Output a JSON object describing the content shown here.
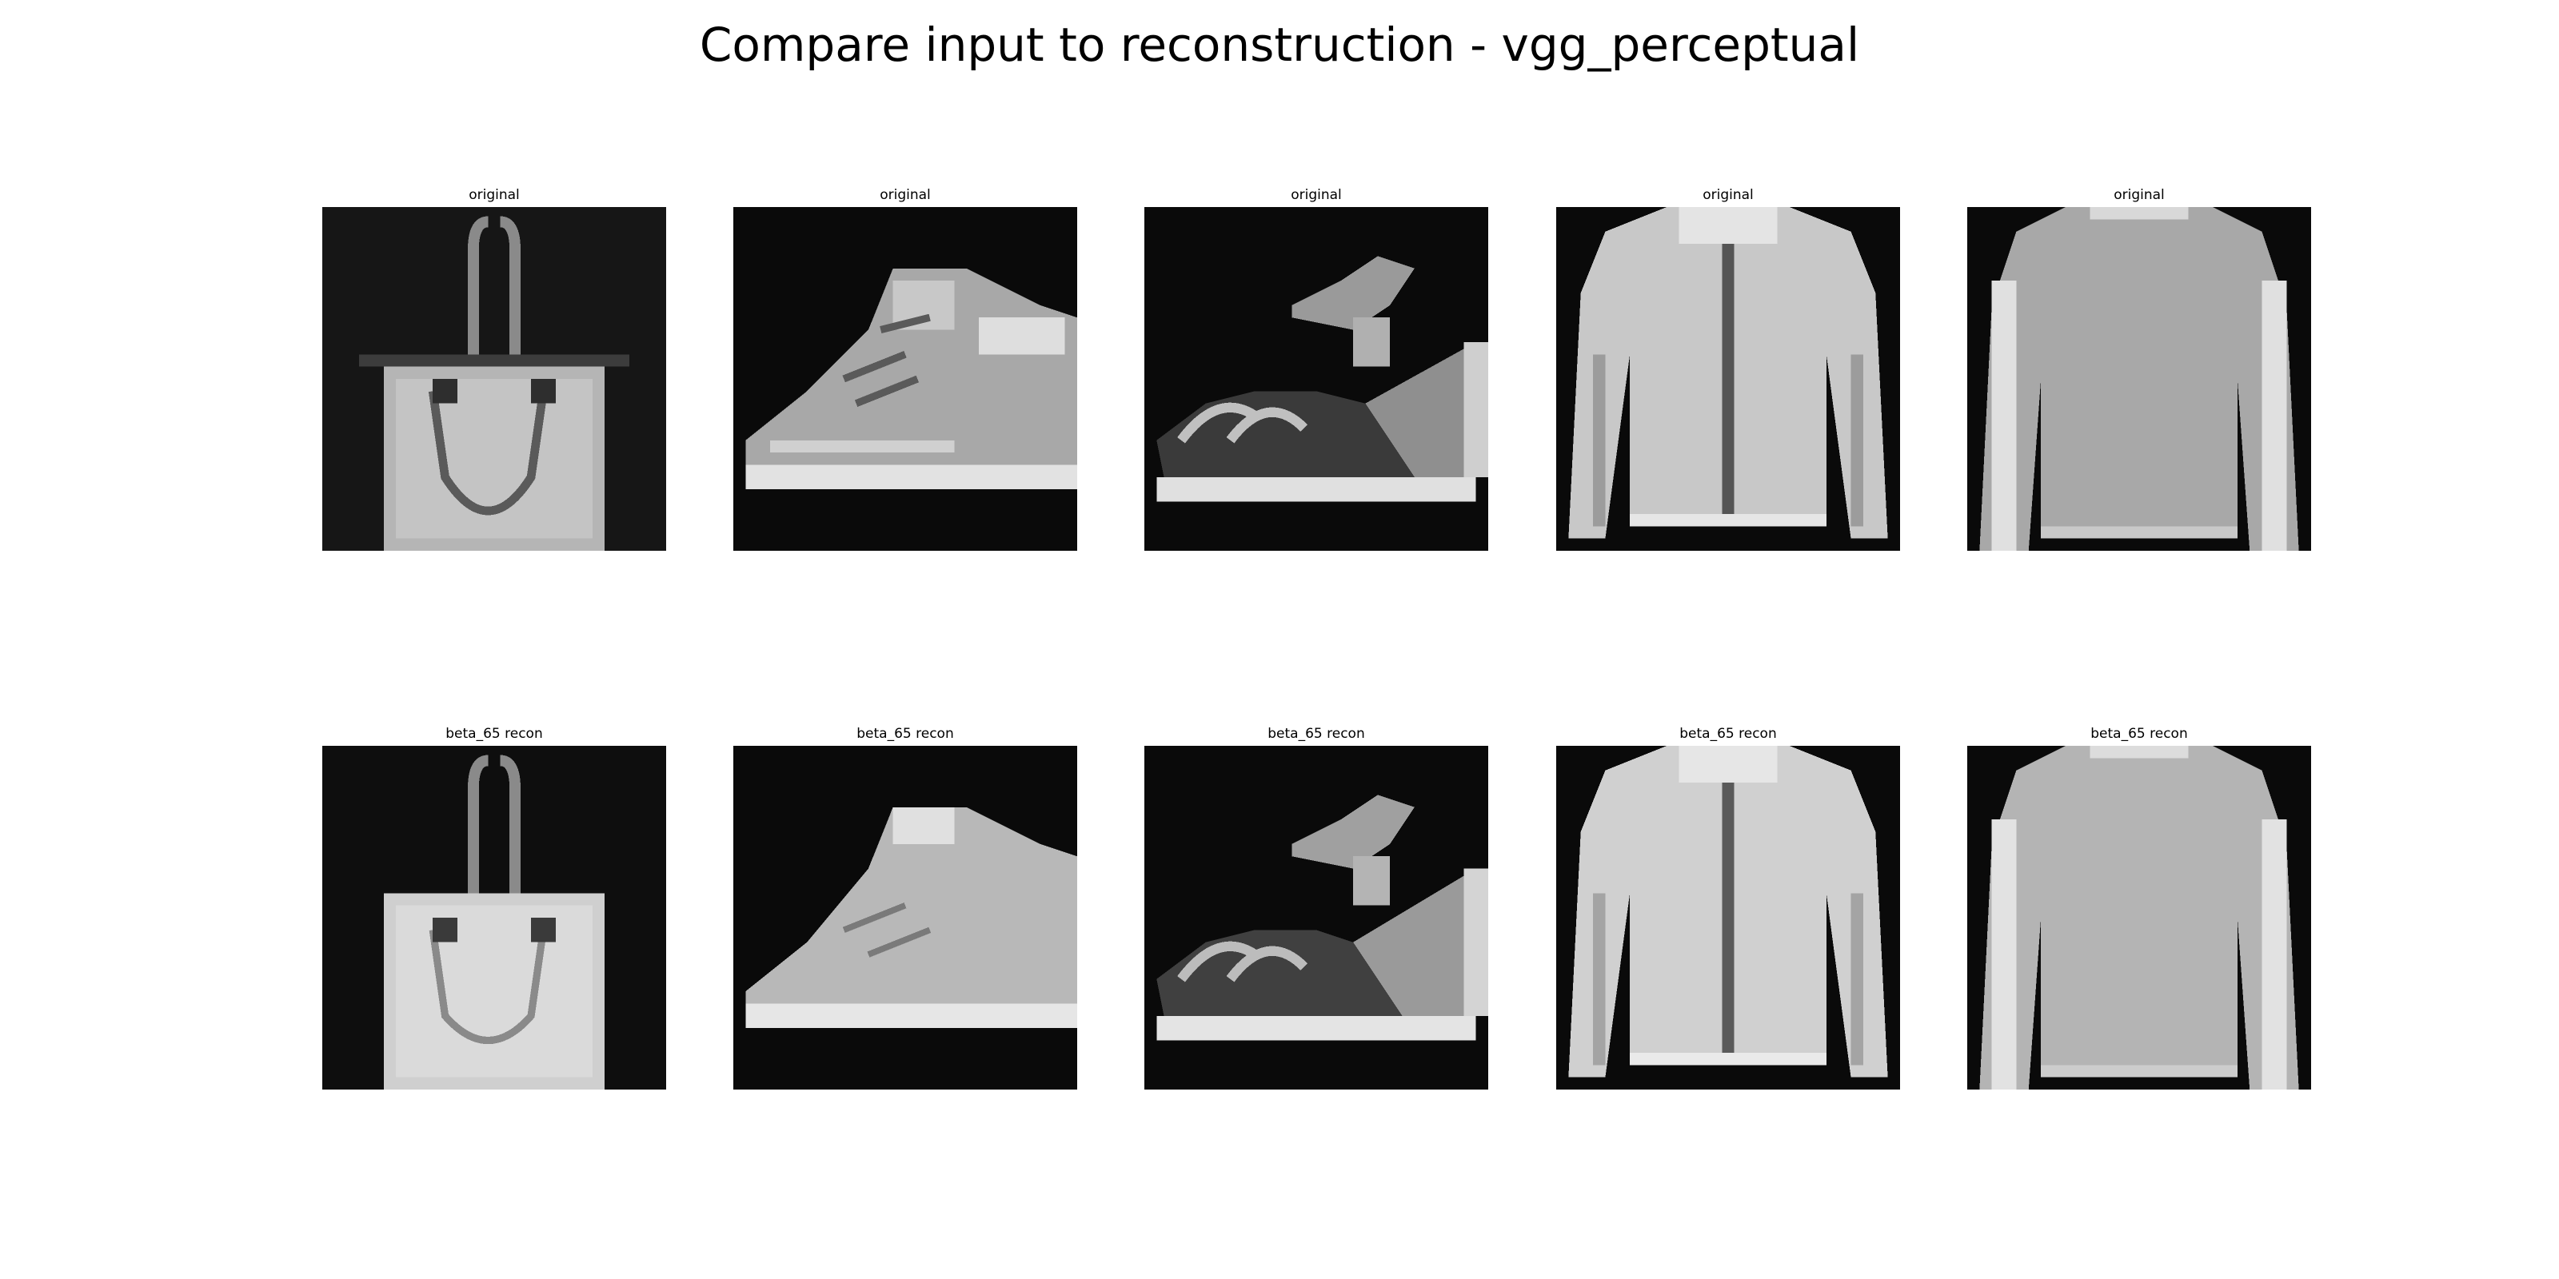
{
  "chart_data": {
    "type": "image_grid",
    "title": "Compare input to reconstruction - vgg_perceptual",
    "rows": [
      {
        "row_label": "original",
        "panels": [
          {
            "title": "original",
            "item": "bag"
          },
          {
            "title": "original",
            "item": "ankle-boot"
          },
          {
            "title": "original",
            "item": "sandal"
          },
          {
            "title": "original",
            "item": "coat"
          },
          {
            "title": "original",
            "item": "pullover"
          }
        ]
      },
      {
        "row_label": "beta_65 recon",
        "panels": [
          {
            "title": "beta_65 recon",
            "item": "bag"
          },
          {
            "title": "beta_65 recon",
            "item": "ankle-boot"
          },
          {
            "title": "beta_65 recon",
            "item": "sandal"
          },
          {
            "title": "beta_65 recon",
            "item": "coat"
          },
          {
            "title": "beta_65 recon",
            "item": "pullover"
          }
        ]
      }
    ]
  },
  "colors": {
    "background": "#0a0a0a",
    "item_light": "#d2d2d2",
    "item_mid": "#a8a8a8",
    "item_dark": "#3c3c3c"
  }
}
